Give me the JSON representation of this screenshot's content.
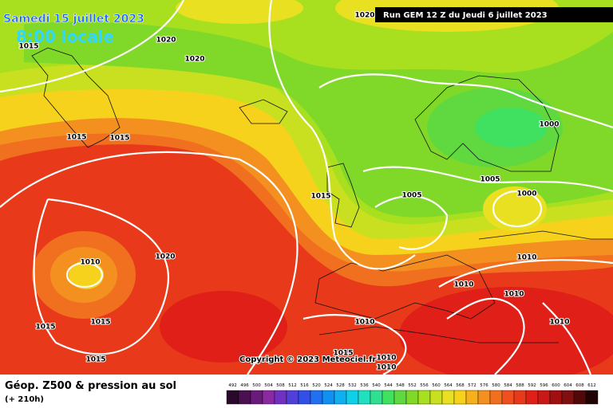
{
  "header": {
    "date": "Samedi 15 juillet 2023",
    "time": "8:00 locale",
    "run": "Run GEM 12 Z du Jeudi 6 juillet 2023"
  },
  "map": {
    "isobar_labels": [
      "1020",
      "1020",
      "1015",
      "1020",
      "1015",
      "1015",
      "1000",
      "1005",
      "1015",
      "1005",
      "1000",
      "1010",
      "1020",
      "1010",
      "1010",
      "1010",
      "1015",
      "1015",
      "1010",
      "1010",
      "1015",
      "1015",
      "1010",
      "1010"
    ],
    "copyright": "Copyright © 2023 Meteociel.fr"
  },
  "legend": {
    "title": "Géop. Z500 & pression au sol",
    "lead": "(+ 210h)",
    "values": [
      492,
      496,
      500,
      504,
      508,
      512,
      516,
      520,
      524,
      528,
      532,
      536,
      540,
      544,
      548,
      552,
      556,
      560,
      564,
      568,
      572,
      576,
      580,
      584,
      588,
      592,
      596,
      600,
      604,
      608,
      612
    ],
    "colors": [
      "#2a0a2a",
      "#4a1050",
      "#6a1a78",
      "#8a2aa0",
      "#7030c0",
      "#5040d8",
      "#3050e8",
      "#2070f0",
      "#1090f0",
      "#10b0f0",
      "#10d0e8",
      "#20e0c0",
      "#30e090",
      "#40e060",
      "#60d840",
      "#80d828",
      "#a8e020",
      "#c8e020",
      "#e8e020",
      "#f6d21c",
      "#f6b01c",
      "#f39020",
      "#f07020",
      "#f05020",
      "#e83a1a",
      "#e02018",
      "#c81818",
      "#a01010",
      "#801010",
      "#500808",
      "#200404"
    ]
  }
}
